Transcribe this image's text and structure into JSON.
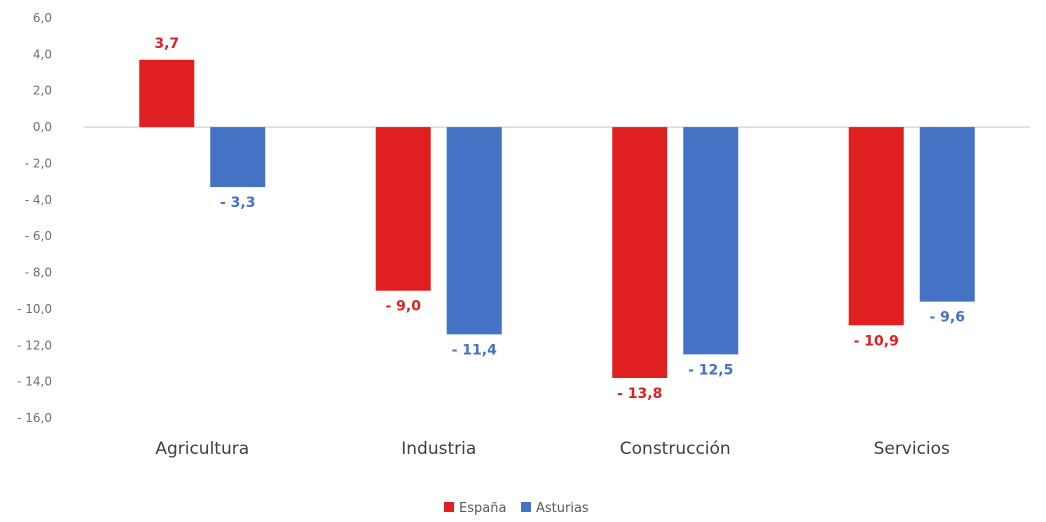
{
  "chart_data": {
    "type": "bar",
    "categories": [
      "Agricultura",
      "Industria",
      "Construcción",
      "Servicios"
    ],
    "series": [
      {
        "name": "España",
        "color": "#e02020",
        "values": [
          3.7,
          -9.0,
          -13.8,
          -10.9
        ],
        "labels": [
          "3,7",
          "- 9,0",
          "- 13,8",
          "- 10,9"
        ]
      },
      {
        "name": "Asturias",
        "color": "#4472c4",
        "values": [
          -3.3,
          -11.4,
          -12.5,
          -9.6
        ],
        "labels": [
          "- 3,3",
          "- 11,4",
          "- 12,5",
          "- 9,6"
        ]
      }
    ],
    "y_ticks": [
      6,
      4,
      2,
      0,
      -2,
      -4,
      -6,
      -8,
      -10,
      -12,
      -14,
      -16
    ],
    "y_tick_labels": [
      "6,0",
      "4,0",
      "2,0",
      "0,0",
      "- 2,0",
      "- 4,0",
      "- 6,0",
      "- 8,0",
      "- 10,0",
      "- 12,0",
      "- 14,0",
      "- 16,0"
    ],
    "ylim": [
      -16,
      6
    ],
    "grid": false,
    "legend_position": "bottom"
  }
}
